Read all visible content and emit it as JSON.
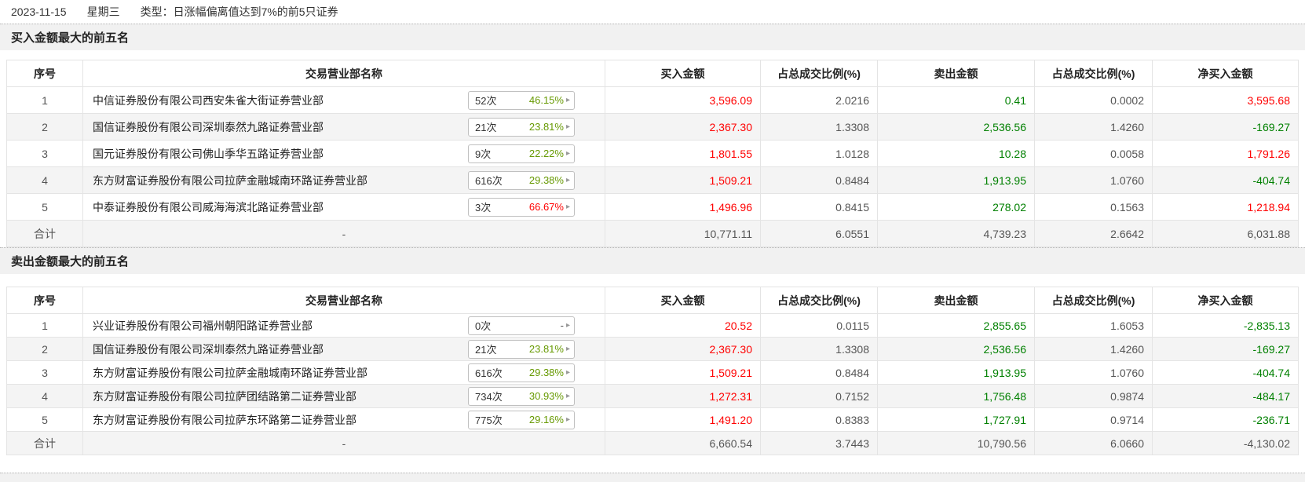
{
  "colors": {
    "value_up_red": "#ff0000",
    "value_down_green": "#008000",
    "badge_percent_green": "#669900",
    "badge_percent_red": "#ff0000",
    "neutral_gray": "#555555",
    "stripe_bg": "#f4f4f4",
    "section_header_bg": "#f1f1f1"
  },
  "topbar": {
    "date": "2023-11-15",
    "weekday": "星期三",
    "type": "类型：日涨幅偏离值达到7%的前5只证券"
  },
  "columns": [
    "序号",
    "交易营业部名称",
    "买入金额",
    "占总成交比例(%)",
    "卖出金额",
    "占总成交比例(%)",
    "净买入金额"
  ],
  "ui": {
    "badge_arrow": "▸",
    "total_name_placeholder": "-"
  },
  "sections": [
    {
      "title": "买入金额最大的前五名",
      "rows": [
        {
          "no": "1",
          "name": "中信证券股份有限公司西安朱雀大街证券营业部",
          "times": "52次",
          "pct": "46.15%",
          "pct_color": "green",
          "buy": "3,596.09",
          "buy_ratio": "2.0216",
          "sell": "0.41",
          "sell_ratio": "0.0002",
          "net": "3,595.68"
        },
        {
          "no": "2",
          "name": "国信证券股份有限公司深圳泰然九路证券营业部",
          "times": "21次",
          "pct": "23.81%",
          "pct_color": "green",
          "buy": "2,367.30",
          "buy_ratio": "1.3308",
          "sell": "2,536.56",
          "sell_ratio": "1.4260",
          "net": "-169.27"
        },
        {
          "no": "3",
          "name": "国元证券股份有限公司佛山季华五路证券营业部",
          "times": "9次",
          "pct": "22.22%",
          "pct_color": "green",
          "buy": "1,801.55",
          "buy_ratio": "1.0128",
          "sell": "10.28",
          "sell_ratio": "0.0058",
          "net": "1,791.26"
        },
        {
          "no": "4",
          "name": "东方财富证券股份有限公司拉萨金融城南环路证券营业部",
          "times": "616次",
          "pct": "29.38%",
          "pct_color": "green",
          "buy": "1,509.21",
          "buy_ratio": "0.8484",
          "sell": "1,913.95",
          "sell_ratio": "1.0760",
          "net": "-404.74"
        },
        {
          "no": "5",
          "name": "中泰证券股份有限公司威海海滨北路证券营业部",
          "times": "3次",
          "pct": "66.67%",
          "pct_color": "red",
          "buy": "1,496.96",
          "buy_ratio": "0.8415",
          "sell": "278.02",
          "sell_ratio": "0.1563",
          "net": "1,218.94"
        }
      ],
      "total": {
        "label": "合计",
        "buy": "10,771.11",
        "buy_ratio": "6.0551",
        "sell": "4,739.23",
        "sell_ratio": "2.6642",
        "net": "6,031.88"
      }
    },
    {
      "title": "卖出金额最大的前五名",
      "rows": [
        {
          "no": "1",
          "name": "兴业证券股份有限公司福州朝阳路证券营业部",
          "times": "0次",
          "pct": "-",
          "pct_color": "dash",
          "buy": "20.52",
          "buy_ratio": "0.0115",
          "sell": "2,855.65",
          "sell_ratio": "1.6053",
          "net": "-2,835.13"
        },
        {
          "no": "2",
          "name": "国信证券股份有限公司深圳泰然九路证券营业部",
          "times": "21次",
          "pct": "23.81%",
          "pct_color": "green",
          "buy": "2,367.30",
          "buy_ratio": "1.3308",
          "sell": "2,536.56",
          "sell_ratio": "1.4260",
          "net": "-169.27"
        },
        {
          "no": "3",
          "name": "东方财富证券股份有限公司拉萨金融城南环路证券营业部",
          "times": "616次",
          "pct": "29.38%",
          "pct_color": "green",
          "buy": "1,509.21",
          "buy_ratio": "0.8484",
          "sell": "1,913.95",
          "sell_ratio": "1.0760",
          "net": "-404.74"
        },
        {
          "no": "4",
          "name": "东方财富证券股份有限公司拉萨团结路第二证券营业部",
          "times": "734次",
          "pct": "30.93%",
          "pct_color": "green",
          "buy": "1,272.31",
          "buy_ratio": "0.7152",
          "sell": "1,756.48",
          "sell_ratio": "0.9874",
          "net": "-484.17"
        },
        {
          "no": "5",
          "name": "东方财富证券股份有限公司拉萨东环路第二证券营业部",
          "times": "775次",
          "pct": "29.16%",
          "pct_color": "green",
          "buy": "1,491.20",
          "buy_ratio": "0.8383",
          "sell": "1,727.91",
          "sell_ratio": "0.9714",
          "net": "-236.71"
        }
      ],
      "total": {
        "label": "合计",
        "buy": "6,660.54",
        "buy_ratio": "3.7443",
        "sell": "10,790.56",
        "sell_ratio": "6.0660",
        "net": "-4,130.02"
      }
    }
  ]
}
